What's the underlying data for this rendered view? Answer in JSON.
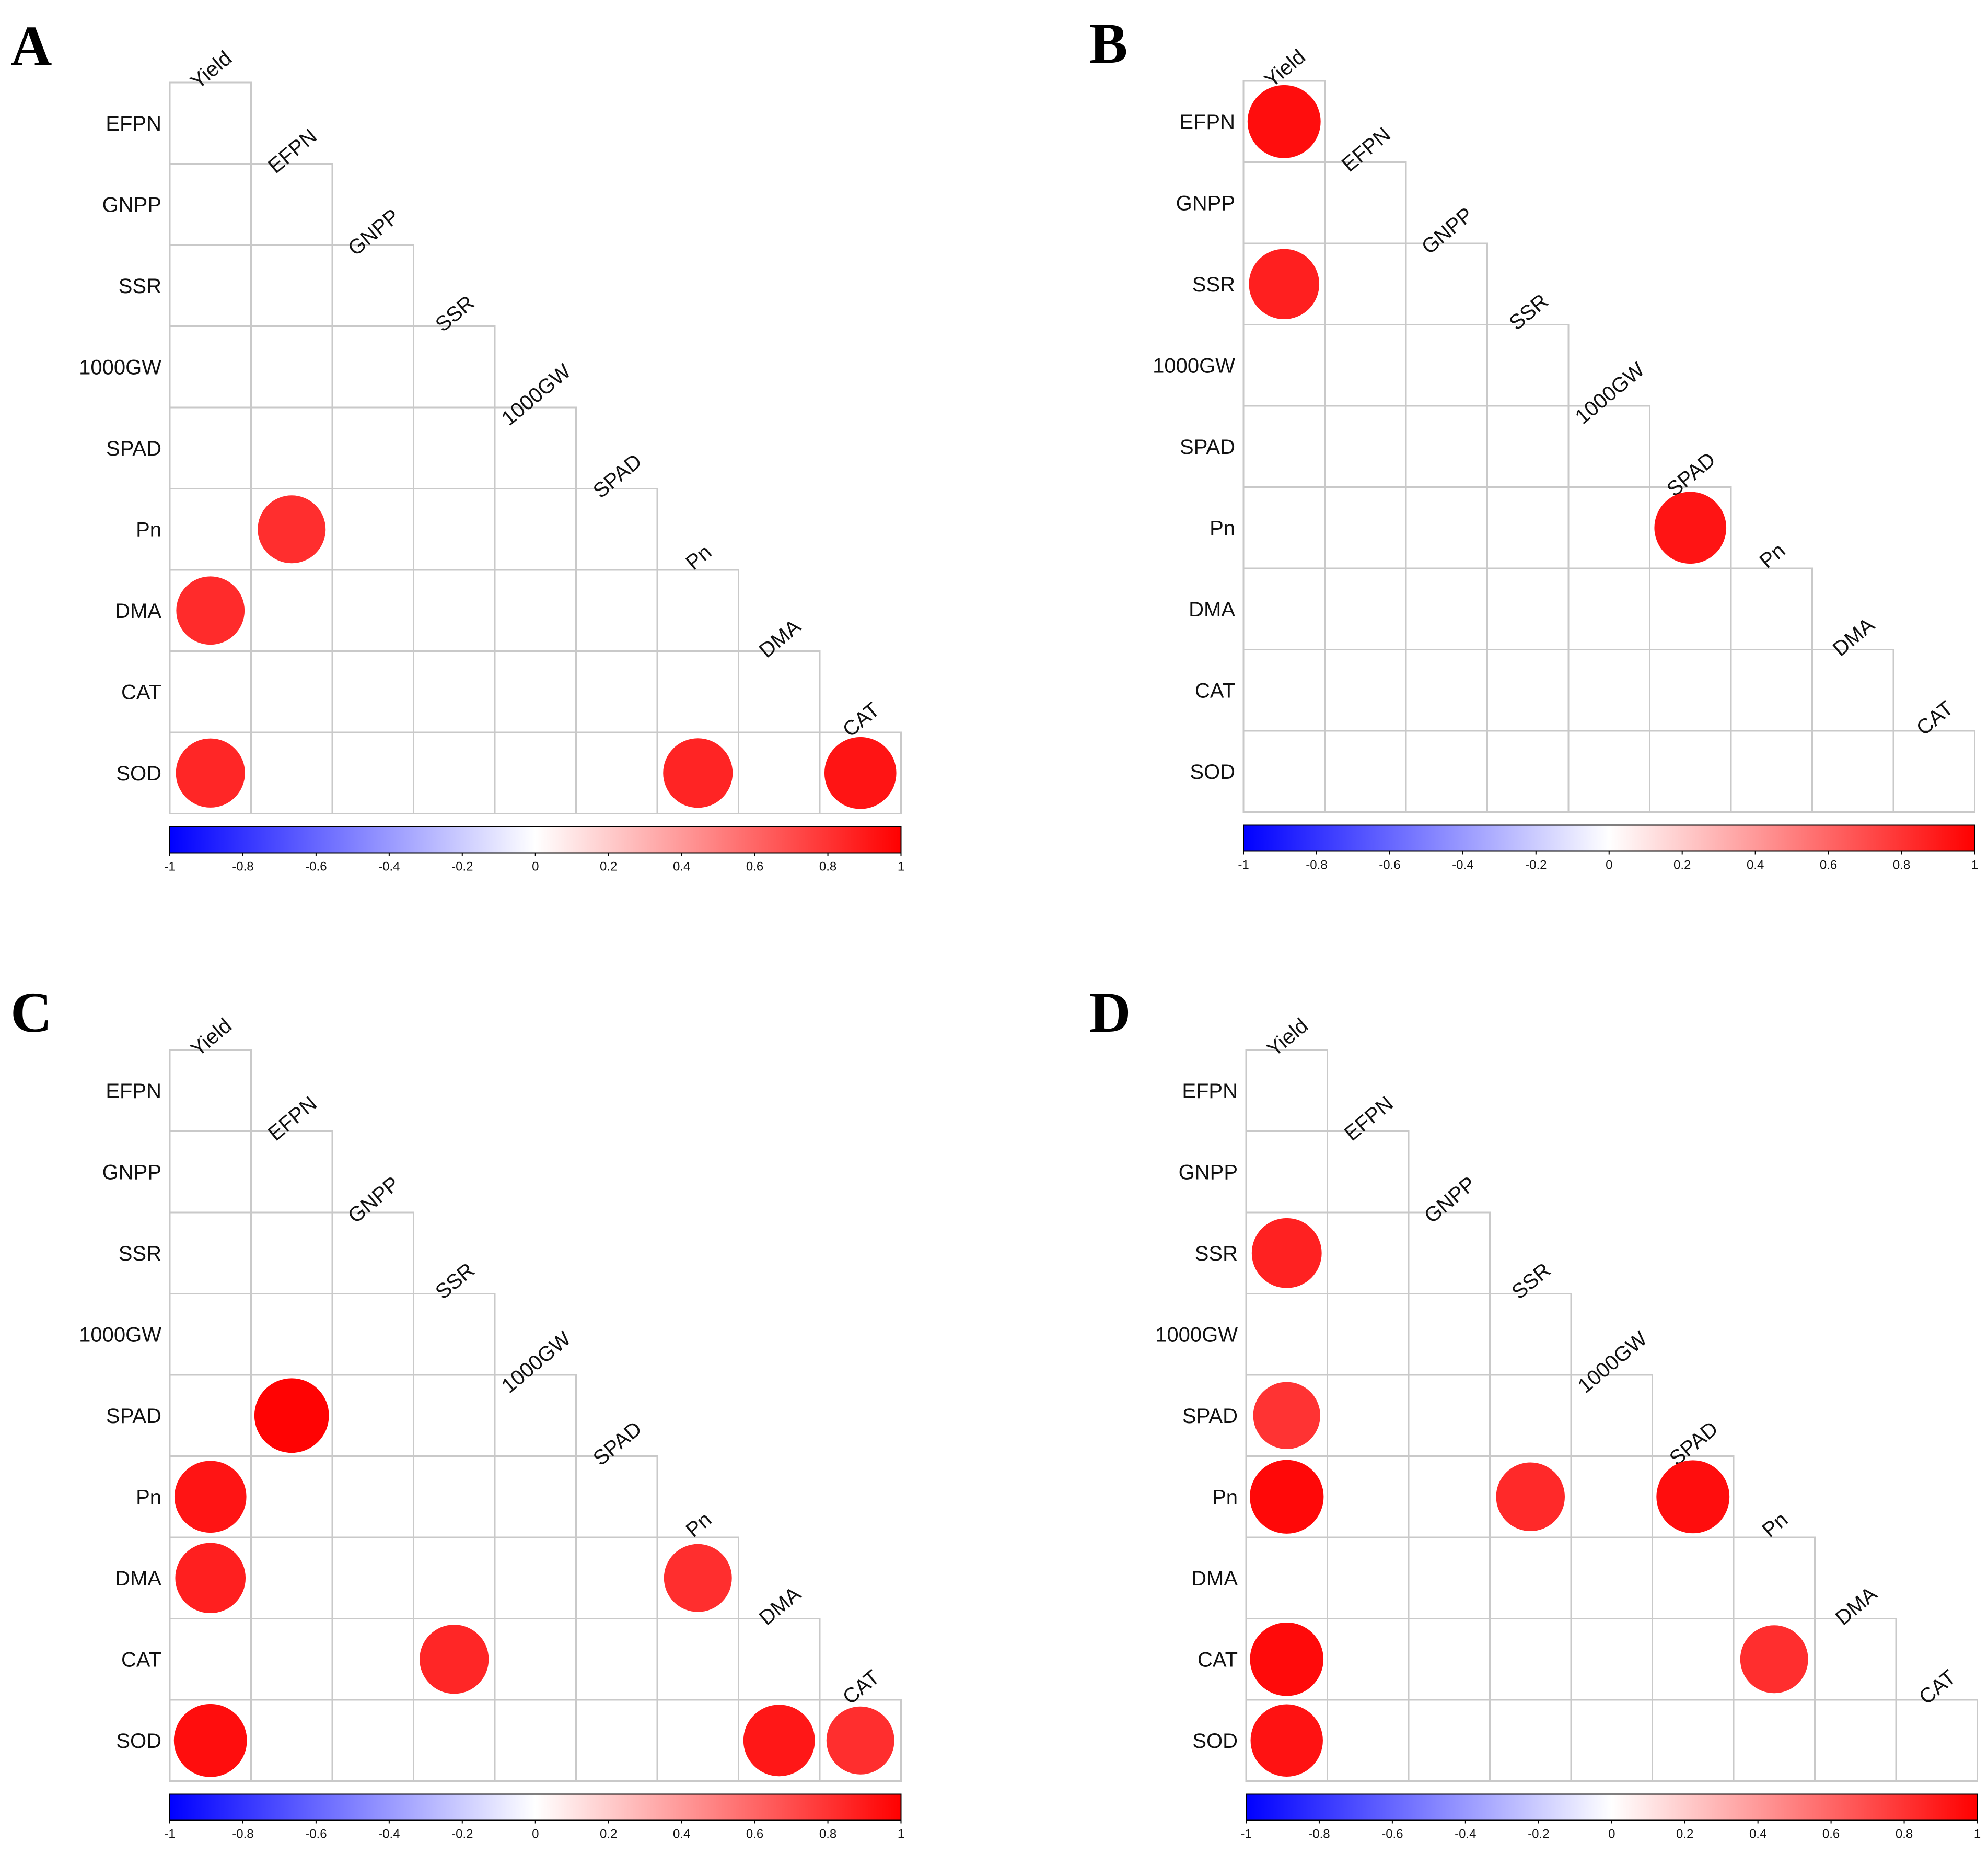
{
  "chart_data": [
    {
      "panel": "A",
      "type": "heatmap",
      "variables": [
        "Yield",
        "EFPN",
        "GNPP",
        "SSR",
        "1000GW",
        "SPAD",
        "Pn",
        "DMA",
        "CAT",
        "SOD"
      ],
      "significant_correlations": [
        {
          "row": "Pn",
          "col": "EFPN",
          "value": 0.82
        },
        {
          "row": "DMA",
          "col": "Yield",
          "value": 0.83
        },
        {
          "row": "SOD",
          "col": "Yield",
          "value": 0.85
        },
        {
          "row": "SOD",
          "col": "Pn",
          "value": 0.86
        },
        {
          "row": "SOD",
          "col": "CAT",
          "value": 0.92
        }
      ],
      "colorbar": {
        "min": -1,
        "max": 1,
        "ticks": [
          "-1",
          "-0.8",
          "-0.6",
          "-0.4",
          "-0.2",
          "0",
          "0.2",
          "0.4",
          "0.6",
          "0.8",
          "1"
        ]
      }
    },
    {
      "panel": "B",
      "type": "heatmap",
      "variables": [
        "Yield",
        "EFPN",
        "GNPP",
        "SSR",
        "1000GW",
        "SPAD",
        "Pn",
        "DMA",
        "CAT",
        "SOD"
      ],
      "significant_correlations": [
        {
          "row": "EFPN",
          "col": "Yield",
          "value": 0.95
        },
        {
          "row": "SSR",
          "col": "Yield",
          "value": 0.88
        },
        {
          "row": "Pn",
          "col": "SPAD",
          "value": 0.92
        }
      ],
      "colorbar": {
        "min": -1,
        "max": 1,
        "ticks": [
          "-1",
          "-0.8",
          "-0.6",
          "-0.4",
          "-0.2",
          "0",
          "0.2",
          "0.4",
          "0.6",
          "0.8",
          "1"
        ]
      }
    },
    {
      "panel": "C",
      "type": "heatmap",
      "variables": [
        "Yield",
        "EFPN",
        "GNPP",
        "SSR",
        "1000GW",
        "SPAD",
        "Pn",
        "DMA",
        "CAT",
        "SOD"
      ],
      "significant_correlations": [
        {
          "row": "SPAD",
          "col": "EFPN",
          "value": 0.99
        },
        {
          "row": "Pn",
          "col": "Yield",
          "value": 0.92
        },
        {
          "row": "DMA",
          "col": "Yield",
          "value": 0.88
        },
        {
          "row": "DMA",
          "col": "Pn",
          "value": 0.82
        },
        {
          "row": "CAT",
          "col": "SSR",
          "value": 0.85
        },
        {
          "row": "SOD",
          "col": "Yield",
          "value": 0.95
        },
        {
          "row": "SOD",
          "col": "DMA",
          "value": 0.91
        },
        {
          "row": "SOD",
          "col": "CAT",
          "value": 0.82
        }
      ],
      "colorbar": {
        "min": -1,
        "max": 1,
        "ticks": [
          "-1",
          "-0.8",
          "-0.6",
          "-0.4",
          "-0.2",
          "0",
          "0.2",
          "0.4",
          "0.6",
          "0.8",
          "1"
        ]
      }
    },
    {
      "panel": "D",
      "type": "heatmap",
      "variables": [
        "Yield",
        "EFPN",
        "GNPP",
        "SSR",
        "1000GW",
        "SPAD",
        "Pn",
        "DMA",
        "CAT",
        "SOD"
      ],
      "significant_correlations": [
        {
          "row": "SSR",
          "col": "Yield",
          "value": 0.87
        },
        {
          "row": "SPAD",
          "col": "Yield",
          "value": 0.8
        },
        {
          "row": "Pn",
          "col": "Yield",
          "value": 0.97
        },
        {
          "row": "Pn",
          "col": "SSR",
          "value": 0.84
        },
        {
          "row": "Pn",
          "col": "SPAD",
          "value": 0.95
        },
        {
          "row": "CAT",
          "col": "Yield",
          "value": 0.96
        },
        {
          "row": "CAT",
          "col": "Pn",
          "value": 0.82
        },
        {
          "row": "SOD",
          "col": "Yield",
          "value": 0.93
        }
      ],
      "colorbar": {
        "min": -1,
        "max": 1,
        "ticks": [
          "-1",
          "-0.8",
          "-0.6",
          "-0.4",
          "-0.2",
          "0",
          "0.2",
          "0.4",
          "0.6",
          "0.8",
          "1"
        ]
      }
    }
  ],
  "colors": {
    "negative": "#0000ff",
    "neutral": "#ffffff",
    "positive": "#ff0000",
    "grid": "#c9c9c9"
  }
}
